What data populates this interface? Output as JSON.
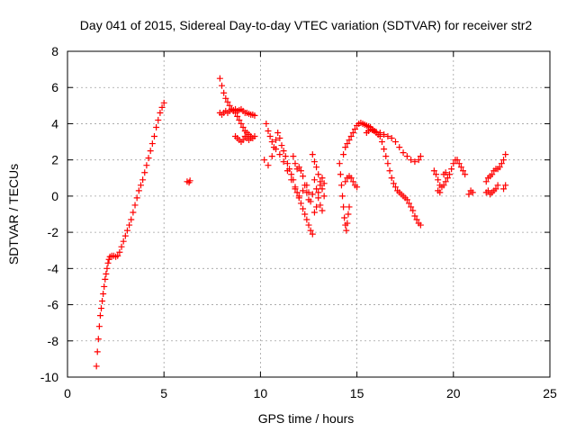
{
  "chart_data": {
    "type": "scatter",
    "title": "Day 041 of 2015, Sidereal Day-to-day VTEC variation (SDTVAR) for receiver str2",
    "xlabel": "GPS time / hours",
    "ylabel": "SDTVAR / TECUs",
    "xlim": [
      0,
      25
    ],
    "ylim": [
      -10,
      8
    ],
    "xticks": [
      0,
      5,
      10,
      15,
      20,
      25
    ],
    "yticks": [
      -10,
      -8,
      -6,
      -4,
      -2,
      0,
      2,
      4,
      6,
      8
    ],
    "grid": true,
    "marker": "+",
    "color": "#ff0000",
    "series": [
      {
        "name": "str2",
        "points": [
          [
            1.5,
            -9.4
          ],
          [
            1.55,
            -8.6
          ],
          [
            1.6,
            -7.9
          ],
          [
            1.65,
            -7.2
          ],
          [
            1.7,
            -6.6
          ],
          [
            1.75,
            -6.2
          ],
          [
            1.8,
            -5.8
          ],
          [
            1.85,
            -5.4
          ],
          [
            1.9,
            -5.0
          ],
          [
            1.95,
            -4.6
          ],
          [
            2.0,
            -4.3
          ],
          [
            2.05,
            -4.0
          ],
          [
            2.1,
            -3.7
          ],
          [
            2.15,
            -3.5
          ],
          [
            2.2,
            -3.35
          ],
          [
            2.3,
            -3.3
          ],
          [
            2.4,
            -3.3
          ],
          [
            2.5,
            -3.35
          ],
          [
            2.6,
            -3.3
          ],
          [
            2.7,
            -3.1
          ],
          [
            2.8,
            -2.8
          ],
          [
            2.9,
            -2.5
          ],
          [
            3.0,
            -2.2
          ],
          [
            3.1,
            -1.9
          ],
          [
            3.2,
            -1.6
          ],
          [
            3.3,
            -1.3
          ],
          [
            3.4,
            -0.9
          ],
          [
            3.5,
            -0.5
          ],
          [
            3.6,
            -0.1
          ],
          [
            3.7,
            0.3
          ],
          [
            3.8,
            0.6
          ],
          [
            3.9,
            0.9
          ],
          [
            4.0,
            1.3
          ],
          [
            4.1,
            1.7
          ],
          [
            4.2,
            2.1
          ],
          [
            4.3,
            2.5
          ],
          [
            4.4,
            2.9
          ],
          [
            4.5,
            3.3
          ],
          [
            4.6,
            3.8
          ],
          [
            4.7,
            4.2
          ],
          [
            4.8,
            4.6
          ],
          [
            4.9,
            4.9
          ],
          [
            5.0,
            5.15
          ],
          [
            6.2,
            0.8
          ],
          [
            6.3,
            0.75
          ],
          [
            6.35,
            0.85
          ],
          [
            7.9,
            6.5
          ],
          [
            8.0,
            6.1
          ],
          [
            8.1,
            5.7
          ],
          [
            8.2,
            5.4
          ],
          [
            8.3,
            5.2
          ],
          [
            8.4,
            5.0
          ],
          [
            8.5,
            4.8
          ],
          [
            8.6,
            4.7
          ],
          [
            8.7,
            4.6
          ],
          [
            8.8,
            4.4
          ],
          [
            8.9,
            4.2
          ],
          [
            9.0,
            4.0
          ],
          [
            9.1,
            3.8
          ],
          [
            9.2,
            3.6
          ],
          [
            9.3,
            3.5
          ],
          [
            9.4,
            3.4
          ],
          [
            9.5,
            3.3
          ],
          [
            9.6,
            3.2
          ],
          [
            9.7,
            3.3
          ],
          [
            7.9,
            4.6
          ],
          [
            8.0,
            4.5
          ],
          [
            8.1,
            4.6
          ],
          [
            8.2,
            4.7
          ],
          [
            8.3,
            4.6
          ],
          [
            8.4,
            4.7
          ],
          [
            8.5,
            4.8
          ],
          [
            8.6,
            4.75
          ],
          [
            8.7,
            4.8
          ],
          [
            8.8,
            4.7
          ],
          [
            8.9,
            4.75
          ],
          [
            9.0,
            4.8
          ],
          [
            9.1,
            4.7
          ],
          [
            9.2,
            4.6
          ],
          [
            9.3,
            4.6
          ],
          [
            9.4,
            4.55
          ],
          [
            9.5,
            4.5
          ],
          [
            9.6,
            4.5
          ],
          [
            9.7,
            4.45
          ],
          [
            8.7,
            3.3
          ],
          [
            8.8,
            3.2
          ],
          [
            8.9,
            3.1
          ],
          [
            9.0,
            3.0
          ],
          [
            9.1,
            3.1
          ],
          [
            9.2,
            3.3
          ],
          [
            9.3,
            3.2
          ],
          [
            9.4,
            3.1
          ],
          [
            9.5,
            3.2
          ],
          [
            10.3,
            4.0
          ],
          [
            10.4,
            3.6
          ],
          [
            10.5,
            3.3
          ],
          [
            10.6,
            3.0
          ],
          [
            10.7,
            2.7
          ],
          [
            10.8,
            3.1
          ],
          [
            10.9,
            3.5
          ],
          [
            11.0,
            3.2
          ],
          [
            11.1,
            2.8
          ],
          [
            11.2,
            2.5
          ],
          [
            11.3,
            2.2
          ],
          [
            11.4,
            1.8
          ],
          [
            11.5,
            1.5
          ],
          [
            11.6,
            1.2
          ],
          [
            11.7,
            0.9
          ],
          [
            11.8,
            0.5
          ],
          [
            11.9,
            0.2
          ],
          [
            12.0,
            -0.1
          ],
          [
            12.1,
            -0.4
          ],
          [
            12.2,
            -0.7
          ],
          [
            12.3,
            -1.0
          ],
          [
            12.4,
            -1.3
          ],
          [
            12.5,
            -1.6
          ],
          [
            12.6,
            -1.9
          ],
          [
            12.7,
            -2.1
          ],
          [
            10.2,
            2.0
          ],
          [
            10.4,
            1.7
          ],
          [
            10.6,
            2.2
          ],
          [
            10.8,
            2.6
          ],
          [
            11.0,
            2.3
          ],
          [
            11.2,
            1.9
          ],
          [
            11.4,
            1.4
          ],
          [
            11.6,
            0.9
          ],
          [
            11.8,
            0.4
          ],
          [
            12.0,
            0.0
          ],
          [
            12.2,
            0.3
          ],
          [
            12.4,
            0.6
          ],
          [
            12.5,
            0.2
          ],
          [
            12.6,
            -0.3
          ],
          [
            12.7,
            0.1
          ],
          [
            11.7,
            2.2
          ],
          [
            11.8,
            1.8
          ],
          [
            11.9,
            1.5
          ],
          [
            12.0,
            1.6
          ],
          [
            12.1,
            1.4
          ],
          [
            12.2,
            1.1
          ],
          [
            12.3,
            0.6
          ],
          [
            12.4,
            0.2
          ],
          [
            12.5,
            -0.2
          ],
          [
            12.7,
            2.3
          ],
          [
            12.8,
            1.9
          ],
          [
            12.9,
            1.6
          ],
          [
            13.0,
            1.2
          ],
          [
            13.1,
            0.8
          ],
          [
            13.2,
            0.4
          ],
          [
            13.3,
            0.0
          ],
          [
            12.8,
            0.9
          ],
          [
            12.9,
            0.4
          ],
          [
            13.0,
            -0.1
          ],
          [
            13.1,
            -0.5
          ],
          [
            13.2,
            -0.8
          ],
          [
            12.8,
            -0.9
          ],
          [
            12.9,
            -0.6
          ],
          [
            13.0,
            0.2
          ],
          [
            13.1,
            0.6
          ],
          [
            13.2,
            1.0
          ],
          [
            13.3,
            0.7
          ],
          [
            14.1,
            1.8
          ],
          [
            14.15,
            1.2
          ],
          [
            14.2,
            0.6
          ],
          [
            14.25,
            0.0
          ],
          [
            14.3,
            -0.6
          ],
          [
            14.35,
            -1.2
          ],
          [
            14.4,
            -1.6
          ],
          [
            14.45,
            -1.9
          ],
          [
            14.5,
            -1.5
          ],
          [
            14.55,
            -1.0
          ],
          [
            14.6,
            -0.6
          ],
          [
            14.4,
            0.8
          ],
          [
            14.5,
            1.0
          ],
          [
            14.6,
            1.1
          ],
          [
            14.7,
            1.0
          ],
          [
            14.8,
            0.8
          ],
          [
            14.9,
            0.6
          ],
          [
            15.0,
            0.5
          ],
          [
            14.3,
            2.3
          ],
          [
            14.4,
            2.7
          ],
          [
            14.5,
            2.9
          ],
          [
            14.6,
            3.1
          ],
          [
            14.7,
            3.3
          ],
          [
            14.8,
            3.5
          ],
          [
            14.9,
            3.7
          ],
          [
            15.0,
            3.9
          ],
          [
            15.1,
            4.0
          ],
          [
            15.2,
            4.05
          ],
          [
            15.3,
            4.0
          ],
          [
            15.4,
            3.95
          ],
          [
            15.5,
            3.9
          ],
          [
            15.6,
            3.85
          ],
          [
            15.7,
            3.8
          ],
          [
            15.8,
            3.7
          ],
          [
            15.9,
            3.6
          ],
          [
            16.0,
            3.5
          ],
          [
            16.1,
            3.4
          ],
          [
            16.2,
            3.3
          ],
          [
            16.3,
            3.0
          ],
          [
            16.4,
            2.6
          ],
          [
            16.5,
            2.2
          ],
          [
            16.6,
            1.8
          ],
          [
            16.7,
            1.4
          ],
          [
            16.8,
            1.0
          ],
          [
            16.9,
            0.7
          ],
          [
            17.0,
            0.5
          ],
          [
            17.1,
            0.3
          ],
          [
            17.2,
            0.2
          ],
          [
            17.3,
            0.1
          ],
          [
            17.4,
            0.0
          ],
          [
            17.5,
            -0.1
          ],
          [
            17.6,
            -0.2
          ],
          [
            17.7,
            -0.4
          ],
          [
            17.8,
            -0.6
          ],
          [
            17.9,
            -0.8
          ],
          [
            18.0,
            -1.1
          ],
          [
            18.1,
            -1.3
          ],
          [
            18.2,
            -1.5
          ],
          [
            18.3,
            -1.6
          ],
          [
            15.5,
            3.5
          ],
          [
            15.6,
            3.6
          ],
          [
            15.7,
            3.7
          ],
          [
            15.8,
            3.65
          ],
          [
            15.9,
            3.6
          ],
          [
            16.0,
            3.55
          ],
          [
            16.2,
            3.5
          ],
          [
            16.4,
            3.4
          ],
          [
            16.6,
            3.3
          ],
          [
            16.8,
            3.2
          ],
          [
            17.0,
            3.0
          ],
          [
            17.2,
            2.7
          ],
          [
            17.4,
            2.4
          ],
          [
            17.6,
            2.2
          ],
          [
            17.8,
            2.0
          ],
          [
            18.0,
            1.9
          ],
          [
            18.2,
            2.0
          ],
          [
            18.3,
            2.2
          ],
          [
            19.0,
            1.4
          ],
          [
            19.1,
            1.2
          ],
          [
            19.2,
            0.9
          ],
          [
            19.3,
            0.6
          ],
          [
            19.4,
            0.5
          ],
          [
            19.5,
            0.6
          ],
          [
            19.6,
            0.8
          ],
          [
            19.7,
            1.0
          ],
          [
            19.8,
            1.2
          ],
          [
            19.9,
            1.5
          ],
          [
            20.0,
            1.8
          ],
          [
            20.1,
            2.0
          ],
          [
            20.2,
            2.0
          ],
          [
            20.3,
            1.8
          ],
          [
            20.4,
            1.6
          ],
          [
            20.5,
            1.4
          ],
          [
            20.6,
            1.2
          ],
          [
            19.2,
            0.3
          ],
          [
            19.3,
            0.2
          ],
          [
            19.5,
            1.2
          ],
          [
            19.6,
            1.3
          ],
          [
            20.8,
            0.1
          ],
          [
            20.9,
            0.3
          ],
          [
            21.0,
            0.2
          ],
          [
            21.7,
            0.8
          ],
          [
            21.8,
            1.0
          ],
          [
            21.9,
            1.1
          ],
          [
            22.0,
            1.2
          ],
          [
            22.1,
            1.4
          ],
          [
            22.2,
            1.5
          ],
          [
            22.3,
            1.5
          ],
          [
            22.4,
            1.6
          ],
          [
            22.5,
            1.8
          ],
          [
            22.6,
            2.0
          ],
          [
            22.7,
            2.3
          ],
          [
            21.7,
            0.2
          ],
          [
            21.8,
            0.3
          ],
          [
            21.9,
            0.1
          ],
          [
            22.0,
            0.2
          ],
          [
            22.1,
            0.3
          ],
          [
            22.2,
            0.4
          ],
          [
            22.3,
            0.6
          ],
          [
            22.6,
            0.4
          ],
          [
            22.7,
            0.6
          ]
        ]
      }
    ]
  }
}
